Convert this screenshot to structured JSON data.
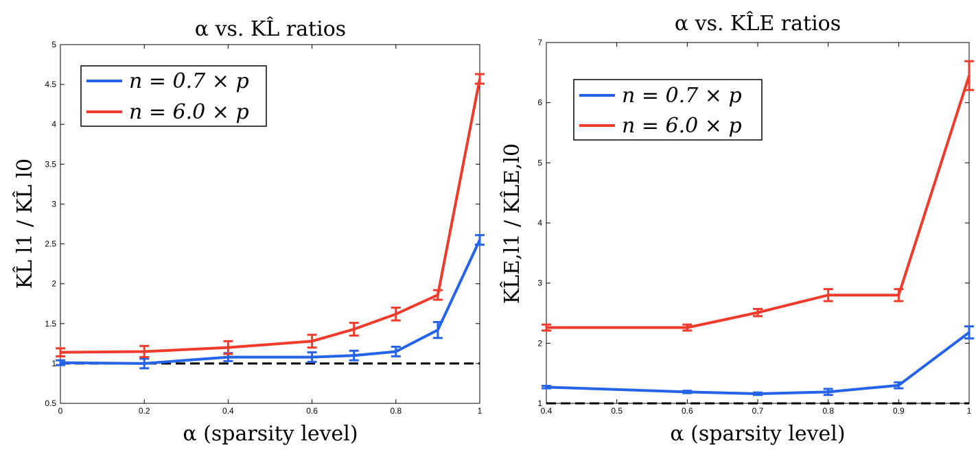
{
  "chart_data": [
    {
      "type": "line",
      "title": "α vs. KL̂ ratios",
      "xlabel": "α (sparsity level)",
      "ylabel": "KL̂ l1 / KL̂ l0",
      "xlim": [
        0,
        1
      ],
      "ylim": [
        0.5,
        5
      ],
      "xticks": [
        0,
        0.2,
        0.4,
        0.6,
        0.8,
        1
      ],
      "xtick_labels": [
        "0",
        "0.2",
        "0.4",
        "0.6",
        "0.8",
        "1"
      ],
      "yticks": [
        0.5,
        1,
        1.5,
        2,
        2.5,
        3,
        3.5,
        4,
        4.5,
        5
      ],
      "ytick_labels": [
        "0.5",
        "1",
        "1.5",
        "2",
        "2.5",
        "3",
        "3.5",
        "4",
        "4.5",
        "5"
      ],
      "reference_line": 1,
      "legend_position": "top-left",
      "series": [
        {
          "name": "n = 0.7 × p",
          "color": "#2563e8",
          "x": [
            0,
            0.2,
            0.4,
            0.6,
            0.7,
            0.8,
            0.9,
            1
          ],
          "values": [
            1.01,
            1.0,
            1.08,
            1.08,
            1.1,
            1.15,
            1.42,
            2.55
          ],
          "errors": [
            0.03,
            0.06,
            0.05,
            0.06,
            0.06,
            0.06,
            0.1,
            0.06
          ]
        },
        {
          "name": "n = 6.0 × p",
          "color": "#ef3b2c",
          "x": [
            0,
            0.2,
            0.4,
            0.6,
            0.7,
            0.8,
            0.9,
            1
          ],
          "values": [
            1.14,
            1.15,
            1.2,
            1.28,
            1.43,
            1.62,
            1.86,
            4.57
          ],
          "errors": [
            0.05,
            0.07,
            0.08,
            0.08,
            0.08,
            0.08,
            0.06,
            0.06
          ]
        }
      ]
    },
    {
      "type": "line",
      "title": "α vs. KL̂E ratios",
      "xlabel": "α (sparsity level)",
      "ylabel": "KL̂E,l1 / KL̂E,l0",
      "xlim": [
        0.4,
        1
      ],
      "ylim": [
        1,
        7
      ],
      "xticks": [
        0.4,
        0.5,
        0.6,
        0.7,
        0.8,
        0.9,
        1
      ],
      "xtick_labels": [
        "0.4",
        "0.5",
        "0.6",
        "0.7",
        "0.8",
        "0.9",
        "1"
      ],
      "yticks": [
        1,
        2,
        3,
        4,
        5,
        6,
        7
      ],
      "ytick_labels": [
        "1",
        "2",
        "3",
        "4",
        "5",
        "6",
        "7"
      ],
      "reference_line": 1,
      "legend_position": "top-left",
      "series": [
        {
          "name": "n = 0.7 × p",
          "color": "#2563e8",
          "x": [
            0.4,
            0.6,
            0.7,
            0.8,
            0.9,
            1
          ],
          "values": [
            1.27,
            1.19,
            1.16,
            1.19,
            1.3,
            2.18
          ],
          "errors": [
            0.02,
            0.02,
            0.02,
            0.05,
            0.05,
            0.1
          ]
        },
        {
          "name": "n = 6.0 × p",
          "color": "#ef3b2c",
          "x": [
            0.4,
            0.6,
            0.7,
            0.8,
            0.9,
            1
          ],
          "values": [
            2.26,
            2.26,
            2.51,
            2.8,
            2.8,
            6.45
          ],
          "errors": [
            0.05,
            0.05,
            0.06,
            0.1,
            0.1,
            0.24
          ]
        }
      ]
    }
  ]
}
